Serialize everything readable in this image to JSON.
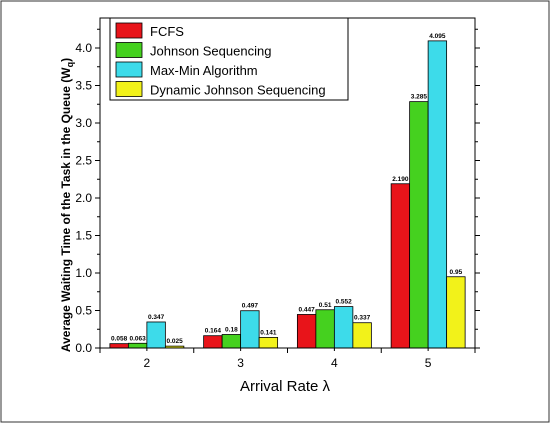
{
  "chart_data": {
    "type": "bar",
    "title": "",
    "xlabel": "Arrival Rate  λ",
    "ylabel": "Average Waiting Time of the Task in the Queue (W",
    "ylabel_sub": "q",
    "ylabel_close": ")",
    "categories": [
      "2",
      "3",
      "4",
      "5"
    ],
    "ylim": [
      0,
      4.4
    ],
    "yticks": [
      "0.0",
      "0.5",
      "1.0",
      "1.5",
      "2.0",
      "2.5",
      "3.0",
      "3.5",
      "4.0"
    ],
    "legend_position": "top-left",
    "grid": false,
    "series": [
      {
        "name": "FCFS",
        "color": "#e8141a",
        "values": [
          0.058,
          0.164,
          0.447,
          2.19
        ],
        "labels": [
          "0.058",
          "0.164",
          "0.447",
          "2.190"
        ]
      },
      {
        "name": "Johnson Sequencing",
        "color": "#45d11f",
        "values": [
          0.063,
          0.18,
          0.51,
          3.285
        ],
        "labels": [
          "0.063",
          "0.18",
          "0.51",
          "3.285"
        ]
      },
      {
        "name": "Max-Min Algorithm",
        "color": "#3ddbea",
        "values": [
          0.347,
          0.497,
          0.552,
          4.095
        ],
        "labels": [
          "0.347",
          "0.497",
          "0.552",
          "4.095"
        ]
      },
      {
        "name": "Dynamic Johnson Sequencing",
        "color": "#f2f21a",
        "values": [
          0.025,
          0.141,
          0.337,
          0.95
        ],
        "labels": [
          "0.025",
          "0.141",
          "0.337",
          "0.95"
        ]
      }
    ]
  }
}
